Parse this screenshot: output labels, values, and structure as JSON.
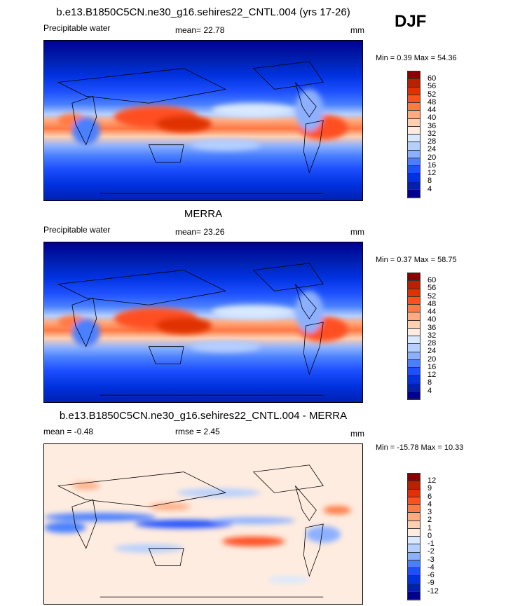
{
  "season": "DJF",
  "colors": [
    "#8b0000",
    "#b82000",
    "#e03200",
    "#ff5020",
    "#ff7a45",
    "#ffaa80",
    "#ffcfb2",
    "#ffece0",
    "#d8e8ff",
    "#b5cfff",
    "#8cb0ff",
    "#4a80ff",
    "#1e50ff",
    "#0032e0",
    "#0020b0",
    "#000090"
  ],
  "chart_data": [
    {
      "type": "heatmap",
      "title": "b.e13.B1850C5CN.ne30_g16.sehires22_CNTL.004 (yrs 17-26)",
      "variable": "Precipitable water",
      "mean_label": "mean=",
      "mean": "22.78",
      "units": "mm",
      "min_label": "Min =",
      "min": "0.39",
      "max_label": "Max =",
      "max": "54.36",
      "levels": [
        "60",
        "56",
        "52",
        "48",
        "44",
        "40",
        "36",
        "32",
        "28",
        "24",
        "20",
        "16",
        "12",
        "8",
        "4"
      ],
      "kind": "field"
    },
    {
      "type": "heatmap",
      "title": "MERRA",
      "variable": "Precipitable water",
      "mean_label": "mean=",
      "mean": "23.26",
      "units": "mm",
      "min_label": "Min =",
      "min": "0.37",
      "max_label": "Max =",
      "max": "58.75",
      "levels": [
        "60",
        "56",
        "52",
        "48",
        "44",
        "40",
        "36",
        "32",
        "28",
        "24",
        "20",
        "16",
        "12",
        "8",
        "4"
      ],
      "kind": "field"
    },
    {
      "type": "heatmap",
      "title": "b.e13.B1850C5CN.ne30_g16.sehires22_CNTL.004 - MERRA",
      "variable": "",
      "mean_label": "mean =",
      "mean": "-0.48",
      "rmse_label": "rmse =",
      "rmse": "2.45",
      "units": "mm",
      "min_label": "Min =",
      "min": "-15.78",
      "max_label": "Max =",
      "max": "10.33",
      "levels": [
        "12",
        "9",
        "6",
        "4",
        "3",
        "2",
        "1",
        "0",
        "-1",
        "-2",
        "-3",
        "-4",
        "-6",
        "-9",
        "-12"
      ],
      "kind": "diff"
    }
  ]
}
